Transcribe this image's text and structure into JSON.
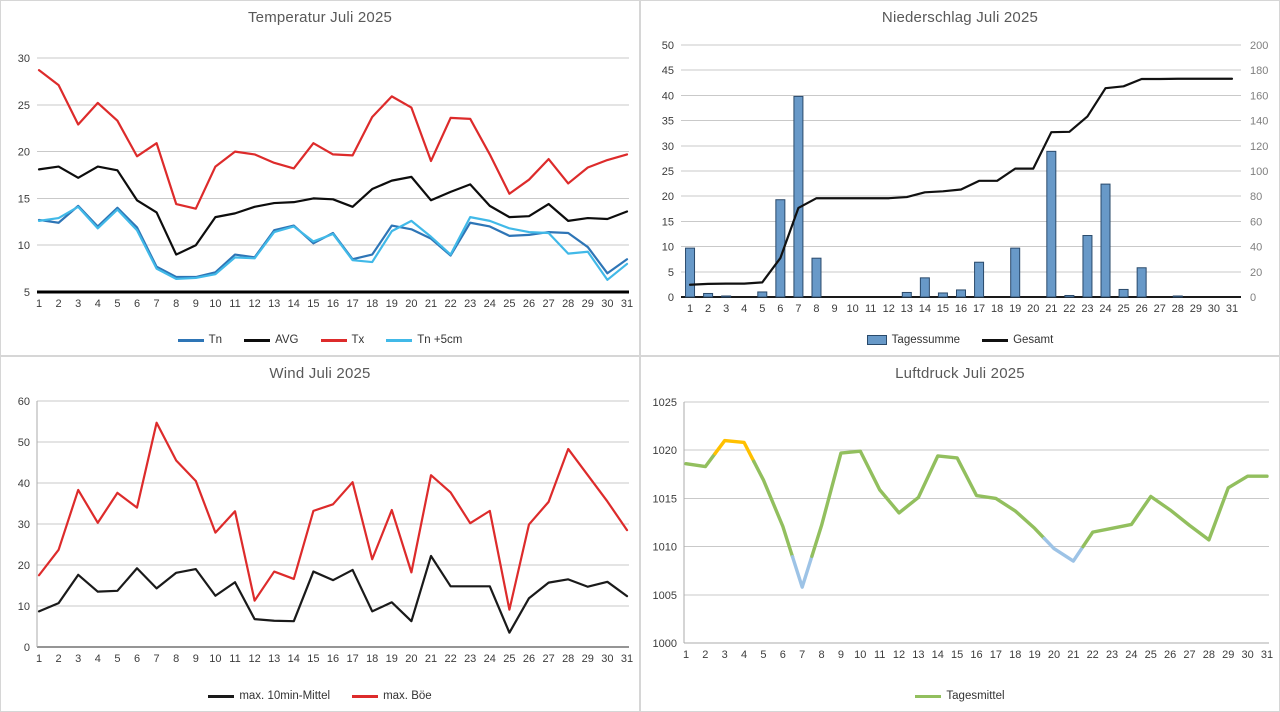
{
  "days": [
    "1",
    "2",
    "3",
    "4",
    "5",
    "6",
    "7",
    "8",
    "9",
    "10",
    "11",
    "12",
    "13",
    "14",
    "15",
    "16",
    "17",
    "18",
    "19",
    "20",
    "21",
    "22",
    "23",
    "24",
    "25",
    "26",
    "27",
    "28",
    "29",
    "30",
    "31"
  ],
  "colors": {
    "grid": "#c9c9c9",
    "panel_border": "#d6d6d6",
    "title": "#595959",
    "tick_label": "#3c3c3c",
    "tick_label_right": "#7f7f7f"
  },
  "chart_data": [
    {
      "id": "temperature",
      "type": "line",
      "title": "Temperatur Juli 2025",
      "ylim": [
        5,
        30
      ],
      "yticks": [
        5,
        10,
        15,
        20,
        25,
        30
      ],
      "legend_position": "bottom",
      "grid": true,
      "series": [
        {
          "name": "Tn",
          "color": "#2e75b6",
          "values": [
            12.7,
            12.4,
            14.2,
            12.0,
            14.0,
            11.9,
            7.7,
            6.6,
            6.6,
            7.1,
            9.0,
            8.7,
            11.6,
            12.1,
            10.2,
            11.3,
            8.5,
            9.0,
            12.1,
            11.7,
            10.7,
            8.9,
            12.4,
            12.0,
            11.0,
            11.1,
            11.4,
            11.3,
            9.8,
            7.0,
            8.5
          ]
        },
        {
          "name": "AVG",
          "color": "#0d0d0d",
          "values": [
            18.1,
            18.4,
            17.2,
            18.4,
            18.0,
            14.8,
            13.5,
            9.0,
            10.0,
            13.0,
            13.4,
            14.1,
            14.5,
            14.6,
            15.0,
            14.9,
            14.1,
            16.0,
            16.9,
            17.3,
            14.8,
            15.7,
            16.5,
            14.2,
            13.0,
            13.1,
            14.4,
            12.6,
            12.9,
            12.8,
            13.6
          ]
        },
        {
          "name": "Tx",
          "color": "#dd2b2b",
          "values": [
            28.7,
            27.1,
            22.9,
            25.2,
            23.3,
            19.5,
            20.9,
            14.4,
            13.9,
            18.4,
            20.0,
            19.7,
            18.8,
            18.2,
            20.9,
            19.7,
            19.6,
            23.7,
            25.9,
            24.7,
            19.0,
            23.6,
            23.5,
            19.7,
            15.5,
            17.0,
            19.2,
            16.6,
            18.3,
            19.1,
            19.7
          ]
        },
        {
          "name": "Tn +5cm",
          "color": "#41b9e8",
          "values": [
            12.6,
            12.9,
            14.1,
            11.8,
            13.8,
            11.6,
            7.5,
            6.4,
            6.5,
            6.9,
            8.7,
            8.6,
            11.4,
            12.0,
            10.4,
            11.2,
            8.4,
            8.2,
            11.5,
            12.6,
            10.9,
            9.0,
            13.0,
            12.6,
            11.8,
            11.4,
            11.3,
            9.1,
            9.3,
            6.3,
            8.0
          ]
        }
      ]
    },
    {
      "id": "precipitation",
      "type": "bar",
      "title": "Niederschlag Juli 2025",
      "ylim": [
        0,
        50
      ],
      "yticks": [
        0,
        5,
        10,
        15,
        20,
        25,
        30,
        35,
        40,
        45,
        50
      ],
      "y2lim": [
        0,
        200
      ],
      "y2ticks": [
        0,
        20,
        40,
        60,
        80,
        100,
        120,
        140,
        160,
        180,
        200
      ],
      "legend_position": "bottom",
      "grid": true,
      "series": [
        {
          "name": "Tagessumme",
          "type": "bar",
          "fill": "#6899c8",
          "border": "#2a4a6b",
          "values": [
            9.7,
            0.7,
            0.2,
            0,
            1.0,
            19.3,
            39.8,
            7.7,
            0,
            0,
            0,
            0,
            0.9,
            3.8,
            0.8,
            1.4,
            6.9,
            0,
            9.7,
            0,
            28.9,
            0.3,
            12.2,
            22.4,
            1.5,
            5.8,
            0,
            0.2,
            0,
            0,
            0
          ]
        },
        {
          "name": "Gesamt",
          "type": "line",
          "axis": "right",
          "color": "#111111",
          "values": [
            9.7,
            10.4,
            10.6,
            10.6,
            11.6,
            30.9,
            70.7,
            78.4,
            78.4,
            78.4,
            78.4,
            78.4,
            79.3,
            83.1,
            83.9,
            85.3,
            92.2,
            92.2,
            101.9,
            101.9,
            130.8,
            131.1,
            143.3,
            165.7,
            167.2,
            173.0,
            173.0,
            173.2,
            173.2,
            173.2,
            173.2
          ]
        }
      ]
    },
    {
      "id": "wind",
      "type": "line",
      "title": "Wind Juli 2025",
      "ylim": [
        0,
        60
      ],
      "yticks": [
        0,
        10,
        20,
        30,
        40,
        50,
        60
      ],
      "legend_position": "bottom",
      "grid": true,
      "series": [
        {
          "name": "max. 10min-Mittel",
          "color": "#1a1a1a",
          "values": [
            8.7,
            10.7,
            17.6,
            13.5,
            13.7,
            19.2,
            14.3,
            18.1,
            19.0,
            12.5,
            15.8,
            6.8,
            6.4,
            6.3,
            18.4,
            16.3,
            18.8,
            8.7,
            10.9,
            6.3,
            22.2,
            14.8,
            14.8,
            14.8,
            3.5,
            11.9,
            15.7,
            16.5,
            14.7,
            15.9,
            12.4
          ]
        },
        {
          "name": "max. Böe",
          "color": "#dd2b2b",
          "values": [
            17.5,
            23.7,
            38.3,
            30.3,
            37.6,
            34.0,
            54.7,
            45.5,
            40.5,
            27.9,
            33.1,
            11.3,
            18.4,
            16.6,
            33.2,
            34.8,
            40.2,
            21.4,
            33.4,
            18.2,
            41.9,
            37.7,
            30.2,
            33.2,
            9.1,
            29.9,
            35.4,
            48.3,
            41.9,
            35.5,
            28.5
          ]
        }
      ]
    },
    {
      "id": "pressure",
      "type": "line",
      "title": "Luftdruck Juli 2025",
      "ylim": [
        1000,
        1025
      ],
      "yticks": [
        1000,
        1005,
        1010,
        1015,
        1020,
        1025
      ],
      "legend_position": "bottom",
      "grid": true,
      "series": [
        {
          "name": "Tagesmittel",
          "color": "#92bf5e",
          "highlight_colors": {
            "yellow": "#ffc000",
            "blue": "#9dc3e6"
          },
          "yellow_days": [
            3,
            4
          ],
          "blue_days": [
            7,
            20,
            21
          ],
          "values": [
            1018.6,
            1018.3,
            1021.0,
            1020.8,
            1016.9,
            1012.1,
            1005.8,
            1012.2,
            1019.7,
            1019.9,
            1015.9,
            1013.5,
            1015.1,
            1019.4,
            1019.2,
            1015.3,
            1015.0,
            1013.7,
            1011.9,
            1009.8,
            1008.5,
            1011.5,
            1011.9,
            1012.3,
            1015.2,
            1013.8,
            1012.2,
            1010.7,
            1016.1,
            1017.3,
            1017.3
          ]
        }
      ]
    }
  ]
}
